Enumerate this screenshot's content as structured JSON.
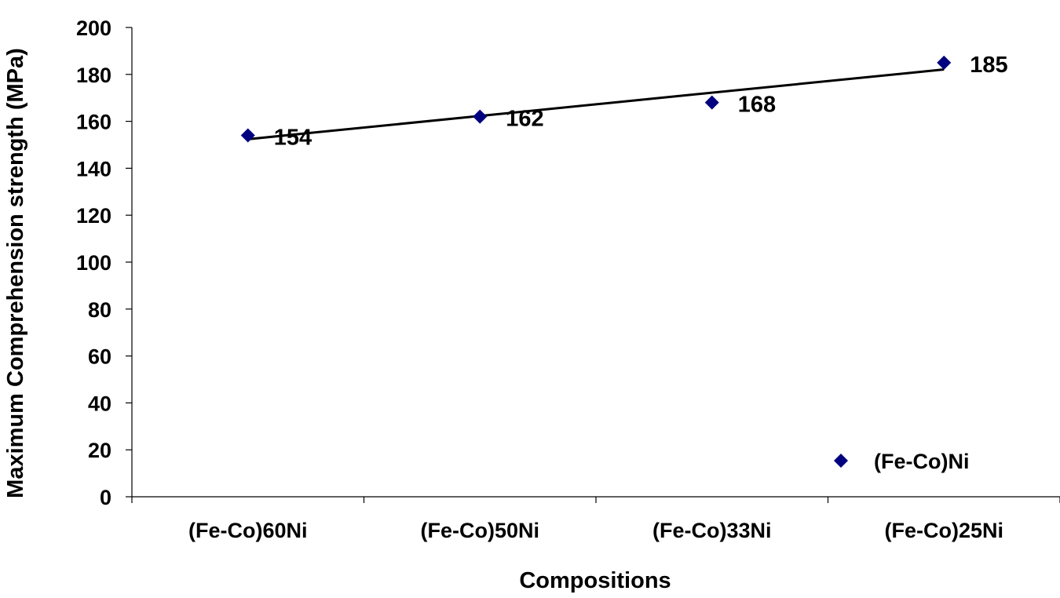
{
  "chart_data": {
    "type": "scatter",
    "categories": [
      "(Fe-Co)60Ni",
      "(Fe-Co)50Ni",
      "(Fe-Co)33Ni",
      "(Fe-Co)25Ni"
    ],
    "series": [
      {
        "name": "(Fe-Co)Ni",
        "values": [
          154,
          162,
          168,
          185
        ],
        "color": "#000080",
        "marker": "diamond",
        "data_labels": [
          "154",
          "162",
          "168",
          "185"
        ]
      }
    ],
    "trendline": {
      "type": "linear",
      "color": "#000000"
    },
    "xlabel": "Compositions",
    "ylabel": "Maximum Comprehension strength (MPa)",
    "ylim": [
      0,
      200
    ],
    "yticks": [
      0,
      20,
      40,
      60,
      80,
      100,
      120,
      140,
      160,
      180,
      200
    ],
    "grid": false,
    "legend": {
      "position": "bottom-right",
      "entries": [
        "(Fe-Co)Ni"
      ]
    }
  }
}
